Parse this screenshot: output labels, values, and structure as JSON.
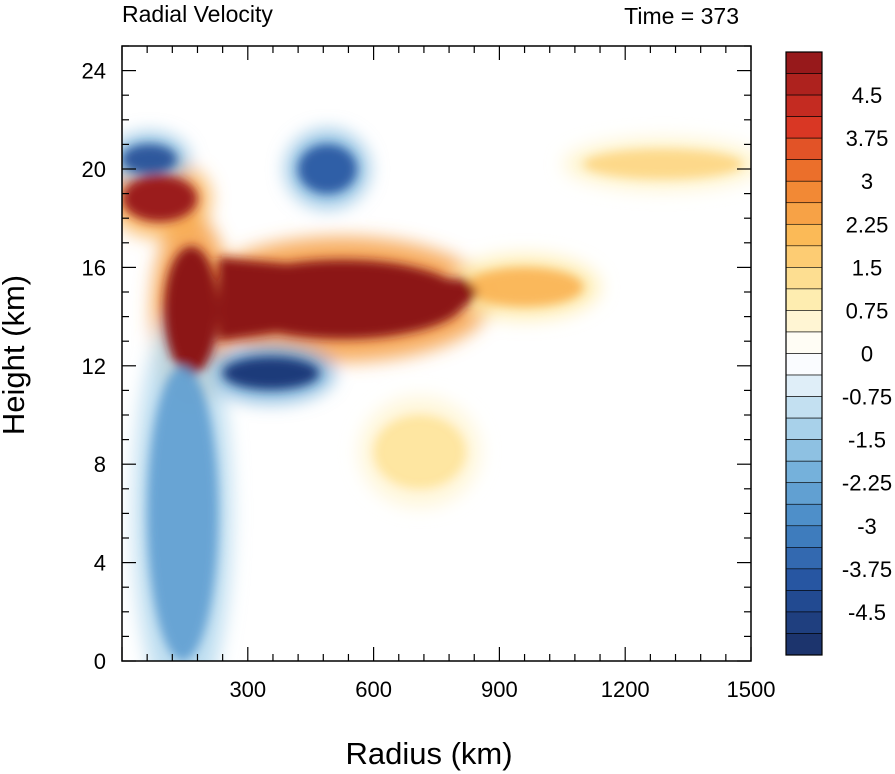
{
  "chart_data": {
    "type": "heatmap",
    "title_left": "Radial Velocity",
    "title_right": "Time = 373",
    "xlabel": "Radius (km)",
    "ylabel": "Height (km)",
    "xlim": [
      0,
      1500
    ],
    "ylim": [
      0,
      25
    ],
    "xticks": [
      300,
      600,
      900,
      1200,
      1500
    ],
    "yticks": [
      0,
      4,
      8,
      12,
      16,
      20,
      24
    ],
    "colorbar": {
      "levels": [
        -5.25,
        5.25
      ],
      "step": 0.375,
      "labels": [
        "4.5",
        "3.75",
        "3",
        "2.25",
        "1.5",
        "0.75",
        "0",
        "-0.75",
        "-1.5",
        "-2.25",
        "-3",
        "-3.75",
        "-4.5"
      ],
      "label_values": [
        4.5,
        3.75,
        3,
        2.25,
        1.5,
        0.75,
        0,
        -0.75,
        -1.5,
        -2.25,
        -3,
        -3.75,
        -4.5
      ]
    },
    "features": [
      {
        "kind": "outflow",
        "r": [
          230,
          820
        ],
        "z": [
          13.0,
          16.4
        ],
        "value": 5.5
      },
      {
        "kind": "outflow",
        "r": [
          100,
          230
        ],
        "z": [
          11.5,
          17.0
        ],
        "value": 5.5
      },
      {
        "kind": "outflow",
        "r": [
          0,
          180
        ],
        "z": [
          17.8,
          19.8
        ],
        "value": 5.0
      },
      {
        "kind": "outflow",
        "r": [
          820,
          1100
        ],
        "z": [
          14.4,
          16.0
        ],
        "value": 2.2
      },
      {
        "kind": "inflow",
        "r": [
          240,
          470
        ],
        "z": [
          11.0,
          12.4
        ],
        "value": -4.8
      },
      {
        "kind": "inflow",
        "r": [
          420,
          560
        ],
        "z": [
          19.0,
          21.0
        ],
        "value": -4.0
      },
      {
        "kind": "inflow",
        "r": [
          0,
          130
        ],
        "z": [
          19.8,
          21.0
        ],
        "value": -4.2
      },
      {
        "kind": "inflow",
        "r": [
          60,
          230
        ],
        "z": [
          0.0,
          12.0
        ],
        "value": -2.5
      },
      {
        "kind": "outflow",
        "r": [
          1100,
          1480
        ],
        "z": [
          19.6,
          20.8
        ],
        "value": 1.5
      },
      {
        "kind": "outflow",
        "r": [
          600,
          820
        ],
        "z": [
          7.0,
          10.0
        ],
        "value": 1.2
      }
    ],
    "grid": false,
    "legend": "right colorbar"
  }
}
